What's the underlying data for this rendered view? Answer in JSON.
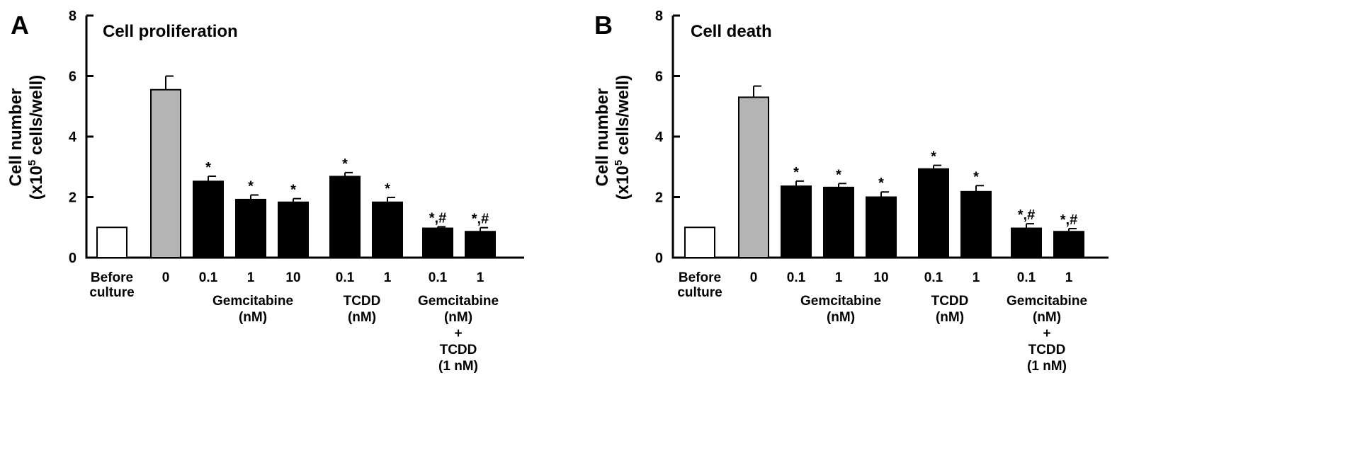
{
  "chart_data": [
    {
      "panel_letter": "A",
      "type": "bar",
      "title": "Cell proliferation",
      "ylabel_line1": "Cell number",
      "ylabel_line2_prefix": "(x10",
      "ylabel_line2_exp": "5",
      "ylabel_line2_suffix": " cells/well)",
      "ylim": [
        0,
        8
      ],
      "yticks": [
        "0",
        "2",
        "4",
        "6",
        "8"
      ],
      "categories": [
        "Before culture",
        "0",
        "0.1",
        "1",
        "10",
        "0.1",
        "1",
        "0.1",
        "1"
      ],
      "category_labels": [
        [
          "Before",
          "culture"
        ],
        [
          "0"
        ],
        [
          "0.1"
        ],
        [
          "1"
        ],
        [
          "10"
        ],
        [
          "0.1"
        ],
        [
          "1"
        ],
        [
          "0.1"
        ],
        [
          "1"
        ]
      ],
      "values": [
        1.0,
        5.55,
        2.52,
        1.92,
        1.83,
        2.68,
        1.83,
        0.97,
        0.86
      ],
      "errors": [
        0,
        0.45,
        0.17,
        0.15,
        0.12,
        0.13,
        0.16,
        0.05,
        0.13
      ],
      "bar_fills": [
        "#ffffff",
        "#b4b4b4",
        "#000000",
        "#000000",
        "#000000",
        "#000000",
        "#000000",
        "#000000",
        "#000000"
      ],
      "significance": [
        "",
        "",
        "*",
        "*",
        "*",
        "*",
        "*",
        "*,#",
        "*,#"
      ],
      "group_labels": [
        {
          "lines": [
            "Gemcitabine",
            "(nM)"
          ]
        },
        {
          "lines": [
            "TCDD",
            "(nM)"
          ]
        },
        {
          "lines": [
            "Gemcitabine",
            "(nM)",
            "+",
            "TCDD",
            "(1 nM)"
          ]
        }
      ],
      "grid": false,
      "legend": "none"
    },
    {
      "panel_letter": "B",
      "type": "bar",
      "title": "Cell death",
      "ylabel_line1": "Cell number",
      "ylabel_line2_prefix": "(x10",
      "ylabel_line2_exp": "5",
      "ylabel_line2_suffix": " cells/well)",
      "ylim": [
        0,
        8
      ],
      "yticks": [
        "0",
        "2",
        "4",
        "6",
        "8"
      ],
      "categories": [
        "Before culture",
        "0",
        "0.1",
        "1",
        "10",
        "0.1",
        "1",
        "0.1",
        "1"
      ],
      "category_labels": [
        [
          "Before",
          "culture"
        ],
        [
          "0"
        ],
        [
          "0.1"
        ],
        [
          "1"
        ],
        [
          "10"
        ],
        [
          "0.1"
        ],
        [
          "1"
        ],
        [
          "0.1"
        ],
        [
          "1"
        ]
      ],
      "values": [
        1.0,
        5.3,
        2.36,
        2.32,
        2.0,
        2.93,
        2.18,
        0.97,
        0.86
      ],
      "errors": [
        0,
        0.37,
        0.17,
        0.13,
        0.17,
        0.12,
        0.2,
        0.15,
        0.1
      ],
      "bar_fills": [
        "#ffffff",
        "#b4b4b4",
        "#000000",
        "#000000",
        "#000000",
        "#000000",
        "#000000",
        "#000000",
        "#000000"
      ],
      "significance": [
        "",
        "",
        "*",
        "*",
        "*",
        "*",
        "*",
        "*,#",
        "*,#"
      ],
      "group_labels": [
        {
          "lines": [
            "Gemcitabine",
            "(nM)"
          ]
        },
        {
          "lines": [
            "TCDD",
            "(nM)"
          ]
        },
        {
          "lines": [
            "Gemcitabine",
            "(nM)",
            "+",
            "TCDD",
            "(1 nM)"
          ]
        }
      ],
      "grid": false,
      "legend": "none"
    }
  ]
}
